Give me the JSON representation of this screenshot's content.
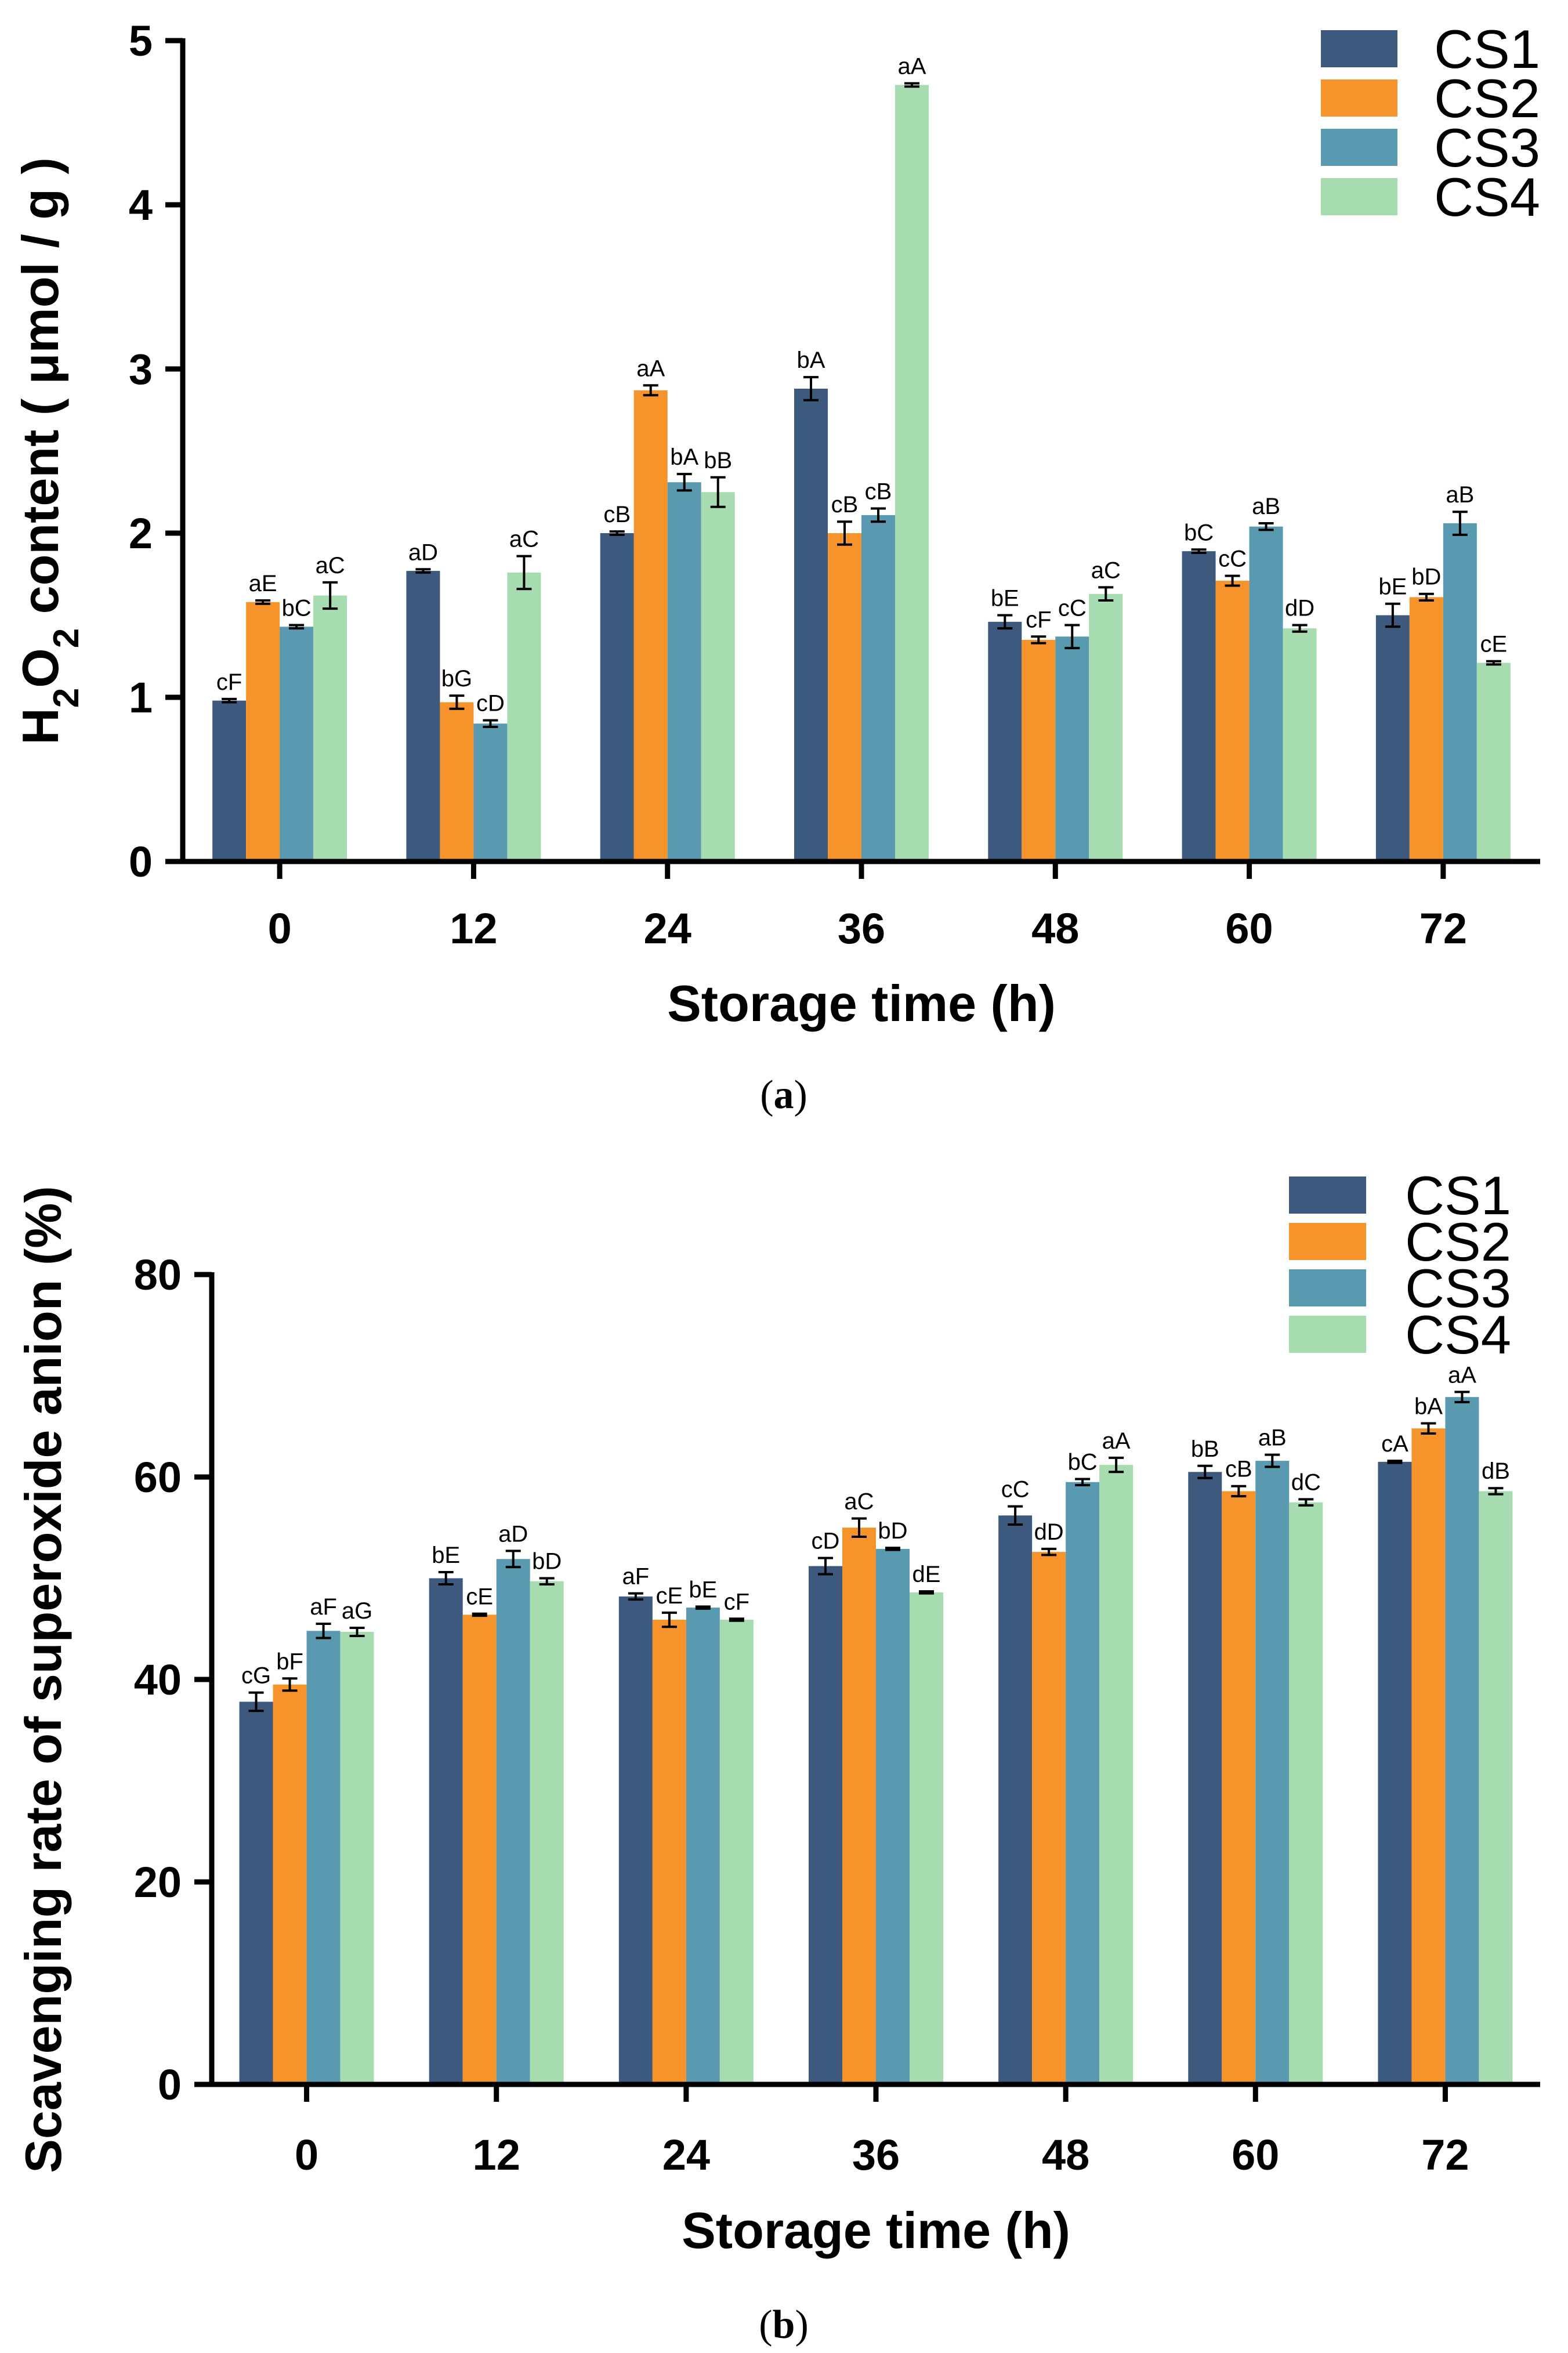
{
  "colors": {
    "CS1": "#3d5a7e",
    "CS2": "#f7932b",
    "CS3": "#5a9ab0",
    "CS4": "#a7dcb0"
  },
  "chart_data": [
    {
      "type": "bar",
      "panel_label": "a",
      "title": "",
      "xlabel": "Storage time (h)",
      "ylabel_parts": [
        "H",
        "2",
        "O",
        "2",
        " content ( μmol / g )"
      ],
      "categories": [
        "0",
        "12",
        "24",
        "36",
        "48",
        "60",
        "72"
      ],
      "ylim": [
        0,
        5
      ],
      "yticks": [
        "0",
        "1",
        "2",
        "3",
        "4",
        "5"
      ],
      "legend_position": "top-right",
      "series": [
        {
          "name": "CS1",
          "values": [
            0.98,
            1.77,
            2.0,
            2.88,
            1.46,
            1.89,
            1.5
          ],
          "errors": [
            0.01,
            0.01,
            0.01,
            0.07,
            0.04,
            0.01,
            0.07
          ],
          "labels": [
            "cF",
            "aD",
            "cB",
            "bA",
            "bE",
            "bC",
            "bE"
          ]
        },
        {
          "name": "CS2",
          "values": [
            1.58,
            0.97,
            2.87,
            2.0,
            1.35,
            1.71,
            1.61
          ],
          "errors": [
            0.01,
            0.04,
            0.03,
            0.07,
            0.02,
            0.03,
            0.02
          ],
          "labels": [
            "aE",
            "bG",
            "aA",
            "cB",
            "cF",
            "cC",
            "bD"
          ]
        },
        {
          "name": "CS3",
          "values": [
            1.43,
            0.84,
            2.31,
            2.11,
            1.37,
            2.04,
            2.06
          ],
          "errors": [
            0.01,
            0.02,
            0.05,
            0.04,
            0.07,
            0.02,
            0.07
          ],
          "labels": [
            "bC",
            "cD",
            "bA",
            "cB",
            "cC",
            "aB",
            "aB"
          ]
        },
        {
          "name": "CS4",
          "values": [
            1.62,
            1.76,
            2.25,
            4.73,
            1.63,
            1.42,
            1.21
          ],
          "errors": [
            0.08,
            0.1,
            0.09,
            0.01,
            0.04,
            0.02,
            0.01
          ],
          "labels": [
            "aC",
            "aC",
            "bB",
            "aA",
            "aC",
            "dD",
            "cE"
          ]
        }
      ]
    },
    {
      "type": "bar",
      "panel_label": "b",
      "title": "",
      "xlabel": "Storage time (h)",
      "ylabel": "Scavenging rate of superoxide anion (%)",
      "categories": [
        "0",
        "12",
        "24",
        "36",
        "48",
        "60",
        "72"
      ],
      "ylim": [
        0,
        80
      ],
      "yticks": [
        "0",
        "20",
        "40",
        "60",
        "80"
      ],
      "legend_position": "top-right",
      "series": [
        {
          "name": "CS1",
          "values": [
            37.8,
            50.0,
            48.2,
            51.2,
            56.2,
            60.5,
            61.5
          ],
          "errors": [
            0.9,
            0.6,
            0.3,
            0.8,
            0.9,
            0.6,
            0.1
          ],
          "labels": [
            "cG",
            "bE",
            "aF",
            "cD",
            "cC",
            "bB",
            "cA"
          ]
        },
        {
          "name": "CS2",
          "values": [
            39.5,
            46.4,
            45.9,
            55.0,
            52.6,
            58.6,
            64.8
          ],
          "errors": [
            0.6,
            0.1,
            0.7,
            0.9,
            0.3,
            0.5,
            0.5
          ],
          "labels": [
            "bF",
            "cE",
            "cE",
            "aC",
            "dD",
            "cB",
            "bA"
          ]
        },
        {
          "name": "CS3",
          "values": [
            44.8,
            51.9,
            47.1,
            52.9,
            59.5,
            61.6,
            67.9
          ],
          "errors": [
            0.7,
            0.8,
            0.1,
            0.1,
            0.3,
            0.6,
            0.5
          ],
          "labels": [
            "aF",
            "aD",
            "bE",
            "bD",
            "bC",
            "aB",
            "aA"
          ]
        },
        {
          "name": "CS4",
          "values": [
            44.7,
            49.7,
            45.9,
            48.6,
            61.2,
            57.5,
            58.6
          ],
          "errors": [
            0.4,
            0.3,
            0.1,
            0.1,
            0.7,
            0.3,
            0.3
          ],
          "labels": [
            "aG",
            "bD",
            "cF",
            "dE",
            "aA",
            "dC",
            "dB"
          ]
        }
      ]
    }
  ]
}
